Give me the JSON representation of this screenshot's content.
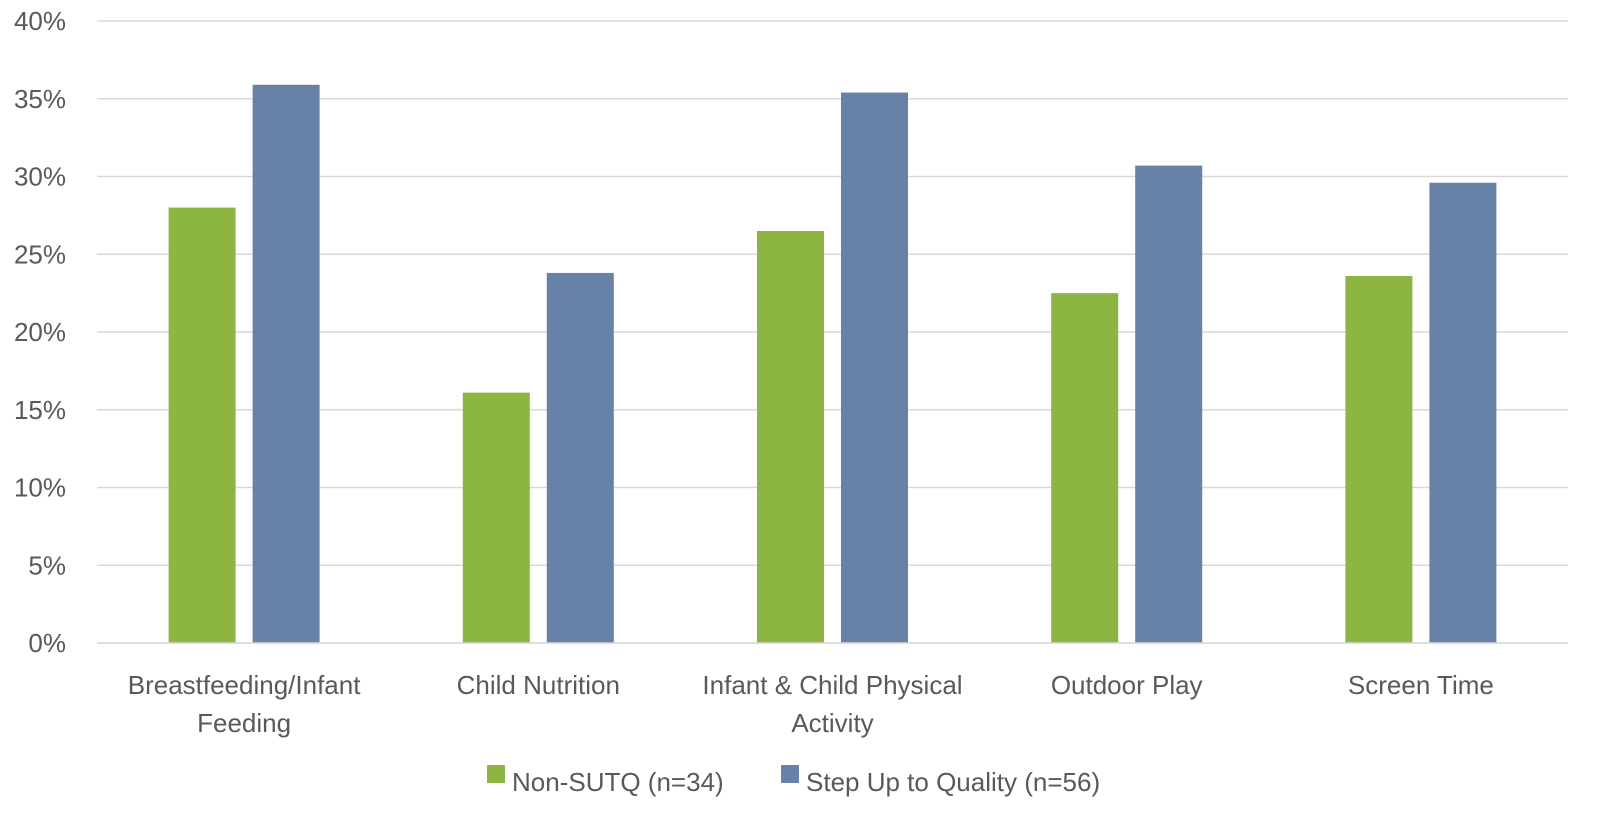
{
  "chart_data": {
    "type": "bar",
    "categories": [
      [
        "Breastfeeding/Infant",
        "Feeding"
      ],
      [
        "Child Nutrition"
      ],
      [
        "Infant & Child Physical",
        "Activity"
      ],
      [
        "Outdoor Play"
      ],
      [
        "Screen Time"
      ]
    ],
    "series": [
      {
        "name": "Non-SUTQ (n=34)",
        "color": "#8DB542",
        "values": [
          28,
          16.1,
          26.5,
          22.5,
          23.6
        ]
      },
      {
        "name": "Step Up to Quality (n=56)",
        "color": "#6881A6",
        "values": [
          35.9,
          23.8,
          35.4,
          30.7,
          29.6
        ]
      }
    ],
    "y_ticks": [
      "0%",
      "5%",
      "10%",
      "15%",
      "20%",
      "25%",
      "30%",
      "35%",
      "40%"
    ],
    "ylim": [
      0,
      40
    ],
    "grid": true,
    "gridline_color": "#D9D9D9",
    "legend": "bottom"
  }
}
